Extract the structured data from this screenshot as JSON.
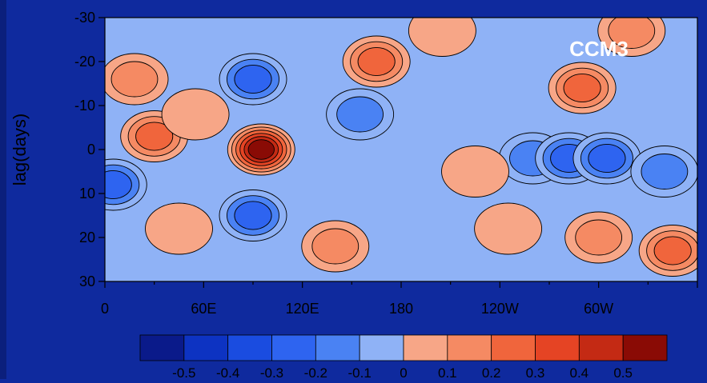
{
  "chart_data": {
    "type": "heatmap",
    "title": "CCM3",
    "ylabel": "lag(days)",
    "xlabel": "",
    "x_ticks": [
      "0",
      "60E",
      "120E",
      "180",
      "120W",
      "60W"
    ],
    "y_ticks": [
      "-30",
      "-20",
      "-10",
      "0",
      "10",
      "20",
      "30"
    ],
    "xlim": [
      "0",
      "360"
    ],
    "ylim": [
      -30,
      30
    ],
    "colorbar": {
      "labels": [
        "-0.5",
        "-0.4",
        "-0.3",
        "-0.2",
        "-0.1",
        "0",
        "0.1",
        "0.2",
        "0.3",
        "0.4",
        "0.5"
      ],
      "colors": [
        "#0a1a8a",
        "#0d33c2",
        "#1a4ce0",
        "#2e64f0",
        "#4a82f3",
        "#8fb2f6",
        "#f7a687",
        "#f58a63",
        "#f0653c",
        "#e54424",
        "#c42a14",
        "#8a0b05"
      ]
    },
    "features": [
      {
        "lon": 95,
        "lag": 0,
        "value": 0.55
      },
      {
        "lon": 30,
        "lag": -3,
        "value": 0.3
      },
      {
        "lon": 18,
        "lag": -16,
        "value": 0.2
      },
      {
        "lon": 55,
        "lag": -8,
        "value": 0.15
      },
      {
        "lon": 90,
        "lag": -16,
        "value": -0.25
      },
      {
        "lon": 155,
        "lag": -8,
        "value": -0.2
      },
      {
        "lon": 165,
        "lag": -20,
        "value": 0.25
      },
      {
        "lon": 90,
        "lag": 15,
        "value": -0.3
      },
      {
        "lon": 5,
        "lag": 8,
        "value": -0.25
      },
      {
        "lon": 45,
        "lag": 18,
        "value": 0.15
      },
      {
        "lon": 140,
        "lag": 22,
        "value": 0.2
      },
      {
        "lon": 260,
        "lag": 2,
        "value": -0.2
      },
      {
        "lon": 282,
        "lag": 2,
        "value": -0.3
      },
      {
        "lon": 305,
        "lag": 2,
        "value": -0.3
      },
      {
        "lon": 340,
        "lag": 5,
        "value": -0.2
      },
      {
        "lon": 290,
        "lag": -14,
        "value": 0.3
      },
      {
        "lon": 320,
        "lag": -27,
        "value": 0.2
      },
      {
        "lon": 245,
        "lag": 18,
        "value": 0.15
      },
      {
        "lon": 300,
        "lag": 20,
        "value": 0.2
      },
      {
        "lon": 345,
        "lag": 23,
        "value": 0.3
      },
      {
        "lon": 205,
        "lag": -27,
        "value": 0.15
      },
      {
        "lon": 225,
        "lag": 5,
        "value": 0.1
      }
    ]
  }
}
